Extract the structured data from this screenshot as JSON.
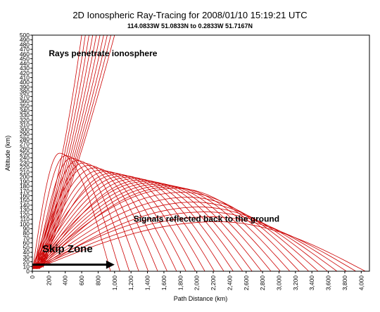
{
  "chart_data": {
    "type": "line",
    "title": "2D Ionospheric Ray-Tracing for 2008/01/10 15:19:21 UTC",
    "subtitle": "114.0833W 51.0833N to  0.2833W 51.7167N",
    "xlabel": "Path Distance (km)",
    "ylabel": "Altitude (km)",
    "xlim": [
      0,
      4100
    ],
    "ylim": [
      0,
      500
    ],
    "x_ticks": [
      "0",
      "200",
      "400",
      "600",
      "800",
      "1,000",
      "1,200",
      "1,400",
      "1,600",
      "1,800",
      "2,000",
      "2,200",
      "2,400",
      "2,600",
      "2,800",
      "3,000",
      "3,200",
      "3,400",
      "3,600",
      "3,800",
      "4,000"
    ],
    "y_ticks": [
      "0",
      "10",
      "20",
      "30",
      "40",
      "50",
      "60",
      "70",
      "80",
      "90",
      "100",
      "110",
      "120",
      "130",
      "140",
      "150",
      "160",
      "170",
      "180",
      "190",
      "200",
      "210",
      "220",
      "230",
      "240",
      "250",
      "260",
      "270",
      "280",
      "290",
      "300",
      "310",
      "320",
      "330",
      "340",
      "350",
      "360",
      "370",
      "380",
      "390",
      "400",
      "410",
      "420",
      "430",
      "440",
      "450",
      "460",
      "470",
      "480",
      "490",
      "500"
    ],
    "grid": false,
    "ray_color": "#cc0000",
    "penetrating_rays": {
      "count": 10,
      "launch_x_range": [
        0,
        130
      ],
      "bend_altitude_range": [
        160,
        245
      ],
      "exit_x_range": [
        600,
        1000
      ]
    },
    "reflected_rays": {
      "count": 28,
      "apex_x_range": [
        330,
        2250
      ],
      "apex_altitude_range": [
        105,
        250
      ],
      "ground_x_range": [
        950,
        4050
      ]
    },
    "annotations": [
      {
        "text": "Rays penetrate ionosphere",
        "x": 200,
        "y": 455
      },
      {
        "text": "Signals reflected back to the ground",
        "x": 1230,
        "y": 105
      },
      {
        "text": "Skip Zone",
        "x": 120,
        "y": 40
      }
    ],
    "skip_zone_arrow": {
      "x_start": 0,
      "x_end": 1000,
      "y": 14
    }
  }
}
